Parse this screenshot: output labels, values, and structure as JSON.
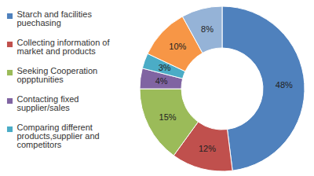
{
  "chart_data": {
    "type": "donut",
    "categories": [
      "Starch and facilities puechasing",
      "Collecting information of market and products",
      "Seeking Cooperation oppptunities",
      "Contacting fixed supplier/sales",
      "Comparing different products,supplier and competitors",
      null,
      null
    ],
    "values": [
      48,
      12,
      15,
      4,
      3,
      10,
      8
    ],
    "value_labels": [
      "48%",
      "12%",
      "15%",
      "4%",
      "3%",
      "10%",
      "8%"
    ],
    "colors": [
      "#4f81bd",
      "#c0504d",
      "#9bbb59",
      "#8064a2",
      "#4bacc6",
      "#f79646",
      "#95b3d7"
    ],
    "data_labels": true,
    "legend": "left"
  }
}
